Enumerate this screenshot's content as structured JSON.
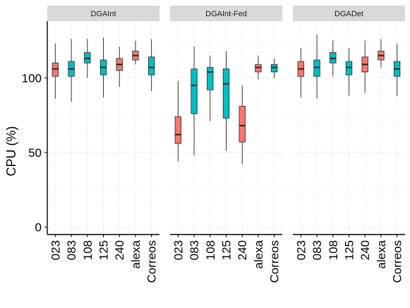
{
  "chart_data": {
    "type": "boxplot",
    "ylabel": "CPU (%)",
    "xlabel": "",
    "ylim": [
      -5,
      138
    ],
    "y_ticks": [
      0,
      50,
      100
    ],
    "categories": [
      "023",
      "083",
      "108",
      "125",
      "240",
      "alexa",
      "Correos"
    ],
    "group_colors": [
      "#F8766D",
      "#00BFC4",
      "#00BFC4",
      "#00BFC4",
      "#F8766D",
      "#F8766D",
      "#00BFC4"
    ],
    "grid": true,
    "legend": "none",
    "panels": [
      {
        "title": "DGAInt",
        "boxes": [
          {
            "category": "023",
            "whisker_low": 86,
            "q1": 101,
            "median": 106,
            "q3": 110,
            "whisker_high": 123
          },
          {
            "category": "083",
            "whisker_low": 84,
            "q1": 101,
            "median": 106,
            "q3": 111,
            "whisker_high": 126
          },
          {
            "category": "108",
            "whisker_low": 100,
            "q1": 110,
            "median": 113,
            "q3": 117,
            "whisker_high": 126
          },
          {
            "category": "125",
            "whisker_low": 87,
            "q1": 102,
            "median": 107,
            "q3": 112,
            "whisker_high": 127
          },
          {
            "category": "240",
            "whisker_low": 94,
            "q1": 105,
            "median": 109,
            "q3": 113,
            "whisker_high": 121
          },
          {
            "category": "alexa",
            "whisker_low": 109,
            "q1": 112,
            "median": 115,
            "q3": 118,
            "whisker_high": 125
          },
          {
            "category": "Correos",
            "whisker_low": 91,
            "q1": 102,
            "median": 107,
            "q3": 114,
            "whisker_high": 126
          }
        ]
      },
      {
        "title": "DGAInt-Fed",
        "boxes": [
          {
            "category": "023",
            "whisker_low": 44,
            "q1": 56,
            "median": 62,
            "q3": 74,
            "whisker_high": 98
          },
          {
            "category": "083",
            "whisker_low": 48,
            "q1": 76,
            "median": 95,
            "q3": 106,
            "whisker_high": 121
          },
          {
            "category": "108",
            "whisker_low": 71,
            "q1": 92,
            "median": 104,
            "q3": 107,
            "whisker_high": 115
          },
          {
            "category": "125",
            "whisker_low": 51,
            "q1": 73,
            "median": 96,
            "q3": 106,
            "whisker_high": 118
          },
          {
            "category": "240",
            "whisker_low": 42,
            "q1": 57,
            "median": 68,
            "q3": 81,
            "whisker_high": 95
          },
          {
            "category": "alexa",
            "whisker_low": 99,
            "q1": 104,
            "median": 107,
            "q3": 109,
            "whisker_high": 115
          },
          {
            "category": "Correos",
            "whisker_low": 100,
            "q1": 104,
            "median": 107,
            "q3": 109,
            "whisker_high": 113
          }
        ]
      },
      {
        "title": "DGADet",
        "boxes": [
          {
            "category": "023",
            "whisker_low": 87,
            "q1": 101,
            "median": 106,
            "q3": 111,
            "whisker_high": 120
          },
          {
            "category": "083",
            "whisker_low": 86,
            "q1": 101,
            "median": 107,
            "q3": 112,
            "whisker_high": 129
          },
          {
            "category": "108",
            "whisker_low": 101,
            "q1": 110,
            "median": 113,
            "q3": 117,
            "whisker_high": 125
          },
          {
            "category": "125",
            "whisker_low": 88,
            "q1": 102,
            "median": 107,
            "q3": 111,
            "whisker_high": 120
          },
          {
            "category": "240",
            "whisker_low": 90,
            "q1": 104,
            "median": 109,
            "q3": 114,
            "whisker_high": 125
          },
          {
            "category": "alexa",
            "whisker_low": 107,
            "q1": 112,
            "median": 115,
            "q3": 118,
            "whisker_high": 126
          },
          {
            "category": "Correos",
            "whisker_low": 88,
            "q1": 101,
            "median": 106,
            "q3": 111,
            "whisker_high": 123
          }
        ]
      }
    ]
  }
}
